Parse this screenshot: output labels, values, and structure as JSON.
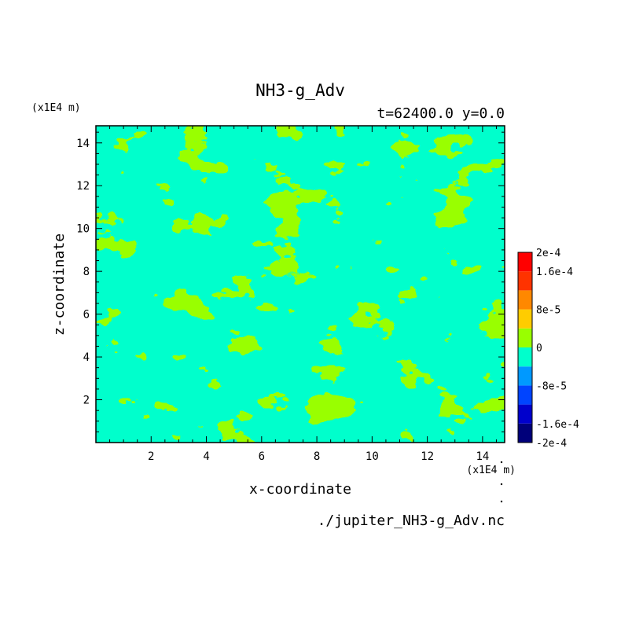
{
  "chart_data": {
    "type": "heatmap",
    "title": "NH3-g_Adv",
    "subtitle": "t=62400.0 y=0.0",
    "xlabel": "x-coordinate",
    "ylabel": "z-coordinate",
    "x_unit": "(x1E4 m)",
    "y_unit": "(x1E4 m)",
    "xlim": [
      0,
      14.8
    ],
    "ylim": [
      0,
      14.8
    ],
    "x_ticks": [
      "2",
      "4",
      "6",
      "8",
      "10",
      "12",
      "14"
    ],
    "y_ticks": [
      "2",
      "4",
      "6",
      "8",
      "10",
      "12",
      "14"
    ],
    "colorbar": {
      "range": [
        -0.0002,
        0.0002
      ],
      "levels": 10,
      "tick_labels": [
        "2e-4",
        "1.6e-4",
        "8e-5",
        "0",
        "-8e-5",
        "-1.6e-4",
        "-2e-4"
      ],
      "colors": [
        "#00007a",
        "#0000cc",
        "#0044ff",
        "#0099ff",
        "#00ffcc",
        "#99ff00",
        "#ffcc00",
        "#ff8800",
        "#ff3300",
        "#ff0000"
      ]
    },
    "dominant_levels": [
      "0 to 4e-5",
      "-4e-5 to 0"
    ],
    "colors": {
      "positive_small": "#99ff00",
      "negative_small": "#00ffcc"
    }
  },
  "footer": "./jupiter_NH3-g_Adv.nc"
}
